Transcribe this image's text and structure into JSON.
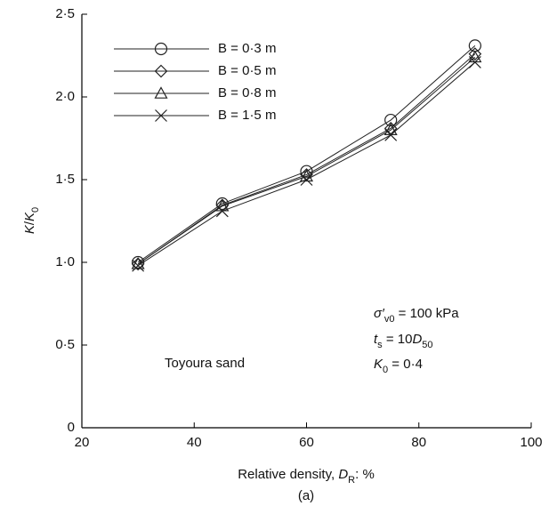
{
  "chart_data": {
    "type": "line",
    "x_label": [
      {
        "text": "Relative density, "
      },
      {
        "text": "D",
        "style": "italic"
      },
      {
        "text": "R",
        "style": "sub"
      },
      {
        "text": ": %"
      }
    ],
    "y_label": [
      {
        "text": "K",
        "style": "italic"
      },
      {
        "text": "/"
      },
      {
        "text": "K",
        "style": "italic"
      },
      {
        "text": "0",
        "style": "sub"
      }
    ],
    "caption": "(a)",
    "x": [
      30,
      45,
      60,
      75,
      90
    ],
    "xlim": [
      20,
      100
    ],
    "xticks": [
      20,
      40,
      60,
      80,
      100
    ],
    "ylim": [
      0,
      2.5
    ],
    "yticks": [
      0,
      {
        "value": 0.5,
        "label": "0·5"
      },
      {
        "value": 1.0,
        "label": "1·0"
      },
      {
        "value": 1.5,
        "label": "1·5"
      },
      {
        "value": 2.0,
        "label": "2·0"
      },
      {
        "value": 2.5,
        "label": "2·5"
      }
    ],
    "legend": "upper left",
    "series": [
      {
        "name": "B = 0·3 m",
        "marker": "circle",
        "color": "#222222",
        "values": [
          1.0,
          1.355,
          1.55,
          1.86,
          2.31
        ]
      },
      {
        "name": "B = 0·5 m",
        "marker": "diamond",
        "color": "#222222",
        "values": [
          0.99,
          1.345,
          1.53,
          1.81,
          2.26
        ]
      },
      {
        "name": "B = 0·8 m",
        "marker": "triangle",
        "color": "#222222",
        "values": [
          0.99,
          1.34,
          1.52,
          1.8,
          2.24
        ]
      },
      {
        "name": "B = 1·5 m",
        "marker": "x",
        "color": "#222222",
        "values": [
          0.98,
          1.31,
          1.5,
          1.77,
          2.21
        ]
      }
    ],
    "annotations": [
      [
        {
          "text": "Toyoura sand"
        }
      ],
      [
        {
          "text": "σ′",
          "style": "italic"
        },
        {
          "text": "v0",
          "style": "sub"
        },
        {
          "text": " = 100 kPa"
        }
      ],
      [
        {
          "text": "t",
          "style": "italic"
        },
        {
          "text": "s",
          "style": "sub"
        },
        {
          "text": " = 10"
        },
        {
          "text": "D",
          "style": "italic"
        },
        {
          "text": "50",
          "style": "sub"
        }
      ],
      [
        {
          "text": "K",
          "style": "italic"
        },
        {
          "text": "0",
          "style": "sub"
        },
        {
          "text": " = 0·4"
        }
      ]
    ]
  }
}
